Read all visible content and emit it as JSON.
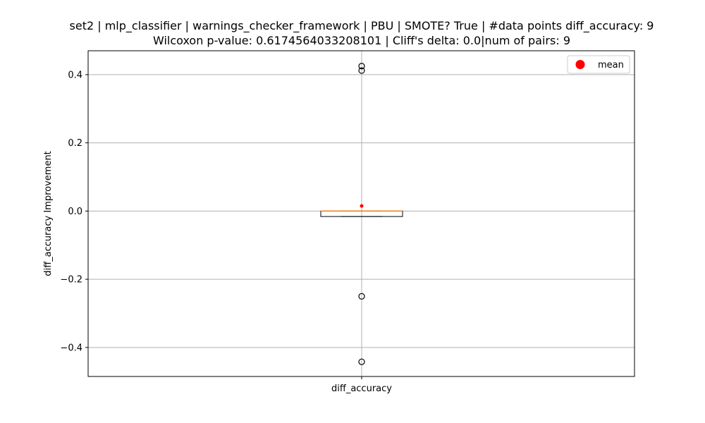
{
  "chart_data": {
    "type": "box",
    "title": [
      "set2 | mlp_classifier | warnings_checker_framework | PBU | SMOTE? True | #data points diff_accuracy: 9",
      "Wilcoxon p-value: 0.6174564033208101 | Cliff's delta: 0.0|num of pairs: 9"
    ],
    "xlabel": "",
    "ylabel": "diff_accuracy Improvement",
    "categories": [
      "diff_accuracy"
    ],
    "ylim": [
      -0.485,
      0.47
    ],
    "yticks": [
      0.4,
      0.2,
      0.0,
      -0.2,
      -0.4
    ],
    "ytick_labels": [
      "0.4",
      "0.2",
      "0.0",
      "−0.2",
      "−0.4"
    ],
    "grid": true,
    "legend": {
      "placement": "upper right",
      "entries": [
        {
          "label": "mean",
          "color": "#ff0000",
          "marker": "circle"
        }
      ]
    },
    "box": {
      "q1": -0.016,
      "median": 0.0,
      "q3": 0.0,
      "whisker_low": -0.016,
      "whisker_high": 0.0,
      "mean": 0.015,
      "outliers": [
        0.425,
        0.412,
        -0.25,
        -0.442
      ]
    },
    "colors": {
      "median": "#ff7f0e",
      "mean": "#ff0000",
      "grid": "#b0b0b0",
      "box": "#000000"
    }
  }
}
